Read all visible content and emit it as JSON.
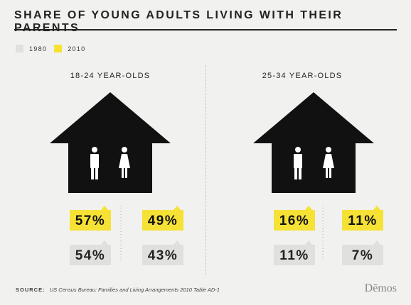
{
  "title": "SHARE OF YOUNG ADULTS LIVING WITH THEIR PARENTS",
  "legend": [
    {
      "label": "1980",
      "color": "#e0e0df"
    },
    {
      "label": "2010",
      "color": "#f6e235"
    }
  ],
  "footer": {
    "label": "SOURCE:",
    "source": "US Census Bureau: Families and Living Arrangements 2010 Table AD-1"
  },
  "logo": "Dēmos",
  "chart_data": {
    "type": "bar",
    "title": "SHARE OF YOUNG ADULTS LIVING WITH THEIR PARENTS",
    "groups": [
      "18-24 YEAR-OLDS",
      "25-34 YEAR-OLDS"
    ],
    "categories": [
      "male",
      "female"
    ],
    "series": [
      {
        "name": "1980",
        "values": [
          [
            54,
            43
          ],
          [
            11,
            7
          ]
        ],
        "labels": [
          [
            "54%",
            "43%"
          ],
          [
            "11%",
            "7%"
          ]
        ]
      },
      {
        "name": "2010",
        "values": [
          [
            57,
            49
          ],
          [
            16,
            11
          ]
        ],
        "labels": [
          [
            "57%",
            "49%"
          ],
          [
            "16%",
            "11%"
          ]
        ]
      }
    ],
    "unit": "%",
    "legend_position": "top-left",
    "colors": {
      "1980": "#e0e0df",
      "2010": "#f6e235",
      "house": "#111111"
    }
  }
}
